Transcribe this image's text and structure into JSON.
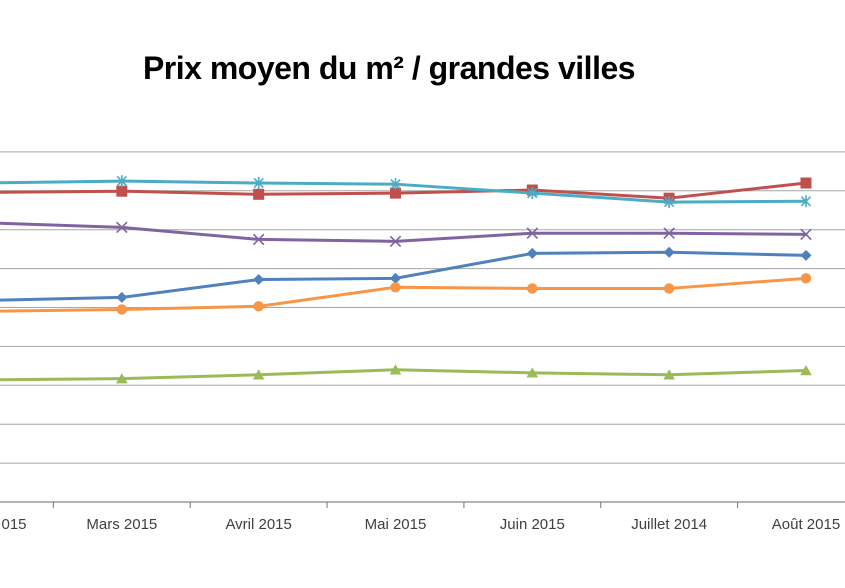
{
  "chart_data": {
    "type": "line",
    "title": "Prix moyen du m² / grandes villes",
    "categories": [
      "015",
      "Mars 2015",
      "Avril 2015",
      "Mai 2015",
      "Juin 2015",
      "Juillet 2014",
      "Août 2015"
    ],
    "categories_note": "leftmost label is clipped by the image edge (only '015' visible); y-axis tick labels are cropped out of view",
    "xlabel": "",
    "ylabel": "",
    "ylim": [
      0,
      9
    ],
    "y_unit": "gridline units (9 horizontal gridline intervals above the x-axis; no numeric y labels visible)",
    "grid": "horizontal",
    "legend": "none",
    "series": [
      {
        "name": "blue-diamond",
        "marker": "diamond",
        "color": "#4F81BD",
        "values": [
          5.18,
          5.26,
          5.72,
          5.75,
          6.39,
          6.42,
          6.34
        ]
      },
      {
        "name": "red-square",
        "marker": "square",
        "color": "#C0504D",
        "values": [
          7.96,
          7.99,
          7.91,
          7.94,
          8.02,
          7.81,
          8.2
        ]
      },
      {
        "name": "green-triangle",
        "marker": "triangle",
        "color": "#9BBB59",
        "values": [
          3.14,
          3.17,
          3.27,
          3.4,
          3.32,
          3.27,
          3.38
        ]
      },
      {
        "name": "purple-x",
        "marker": "x",
        "color": "#8064A2",
        "values": [
          7.18,
          7.06,
          6.75,
          6.7,
          6.91,
          6.91,
          6.88
        ]
      },
      {
        "name": "teal-asterisk",
        "marker": "asterisk",
        "color": "#4BACC6",
        "values": [
          8.2,
          8.25,
          8.2,
          8.17,
          7.94,
          7.71,
          7.73
        ]
      },
      {
        "name": "orange-circle",
        "marker": "circle",
        "color": "#F79646",
        "values": [
          4.9,
          4.95,
          5.03,
          5.52,
          5.49,
          5.49,
          5.75
        ]
      }
    ],
    "colors": {
      "gridline": "#A6A6A6",
      "axis": "#898989",
      "tick_label": "#3F3F3F",
      "title": "#000000",
      "background": "#FFFFFF"
    }
  }
}
